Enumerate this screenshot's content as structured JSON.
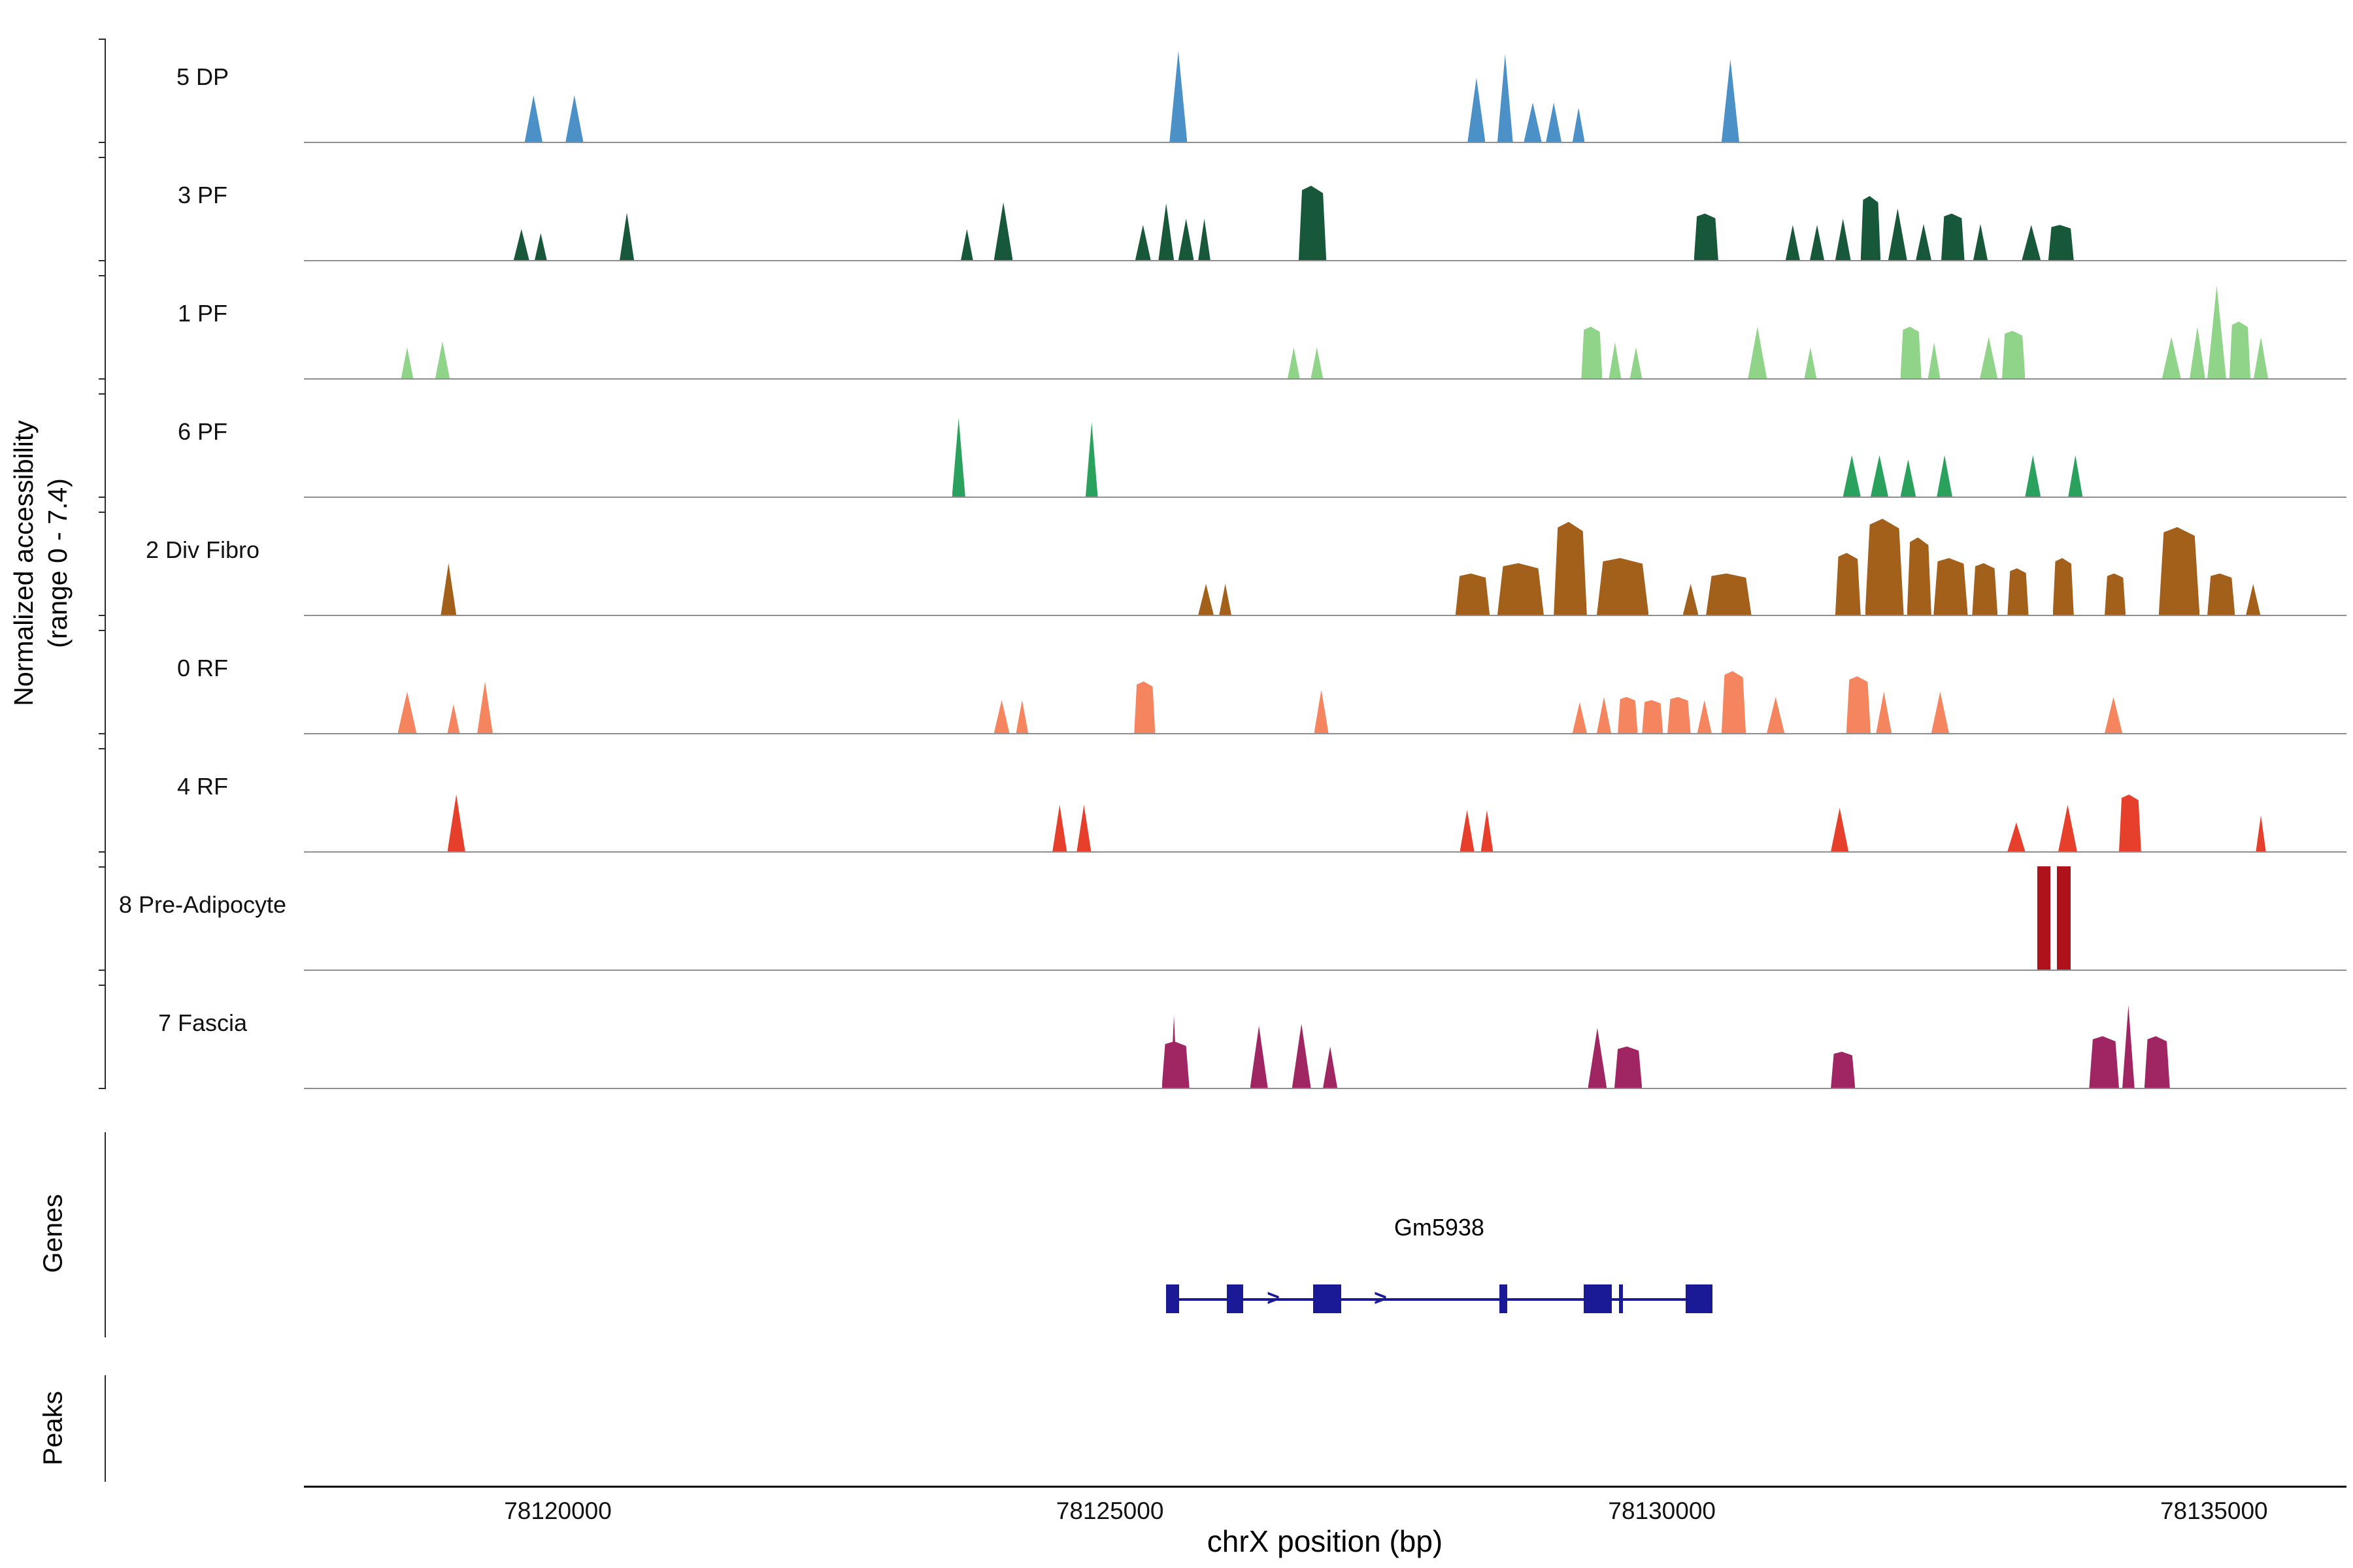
{
  "labels": {
    "y_axis_line1": "Normalized accessibility",
    "y_axis_line2": "(range 0 - 7.4)",
    "genes_section": "Genes",
    "peaks_section": "Peaks"
  },
  "chart_data": {
    "type": "area",
    "title": "",
    "xlabel": "chrX position (bp)",
    "ylabel": "Normalized accessibility (range 0 - 7.4)",
    "ylim": [
      0,
      7.4
    ],
    "x_domain": [
      78117700,
      78136200
    ],
    "x_ticks": [
      78120000,
      78125000,
      78130000,
      78135000
    ],
    "x_tick_labels": [
      "78120000",
      "78125000",
      "78130000",
      "78135000"
    ],
    "legend": "none",
    "grid": false,
    "tracks": [
      {
        "label": "5 DP",
        "color": "#4b90c6",
        "peaks": [
          [
            78119700,
            78119860,
            0.45
          ],
          [
            78120070,
            78120230,
            0.45
          ],
          [
            78125540,
            78125700,
            0.88
          ],
          [
            78128240,
            78128400,
            0.62
          ],
          [
            78128510,
            78128650,
            0.85
          ],
          [
            78128750,
            78128910,
            0.38
          ],
          [
            78128950,
            78129090,
            0.38
          ],
          [
            78129190,
            78129300,
            0.33
          ],
          [
            78130540,
            78130700,
            0.8
          ]
        ]
      },
      {
        "label": "3 PF",
        "color": "#17573a",
        "peaks": [
          [
            78119600,
            78119740,
            0.3
          ],
          [
            78119790,
            78119900,
            0.26
          ],
          [
            78120560,
            78120690,
            0.46
          ],
          [
            78123650,
            78123760,
            0.3
          ],
          [
            78123950,
            78124120,
            0.56
          ],
          [
            78125230,
            78125370,
            0.34
          ],
          [
            78125440,
            78125580,
            0.55
          ],
          [
            78125620,
            78125760,
            0.4
          ],
          [
            78125800,
            78125910,
            0.4
          ],
          [
            78126710,
            78126960,
            0.72
          ],
          [
            78130290,
            78130510,
            0.45
          ],
          [
            78131120,
            78131250,
            0.34
          ],
          [
            78131340,
            78131470,
            0.34
          ],
          [
            78131570,
            78131710,
            0.4
          ],
          [
            78131800,
            78131980,
            0.62
          ],
          [
            78132050,
            78132220,
            0.5
          ],
          [
            78132300,
            78132440,
            0.35
          ],
          [
            78132530,
            78132740,
            0.45
          ],
          [
            78132820,
            78132950,
            0.35
          ],
          [
            78133260,
            78133430,
            0.34
          ],
          [
            78133500,
            78133730,
            0.34
          ]
        ]
      },
      {
        "label": "1 PF",
        "color": "#8fd488",
        "peaks": [
          [
            78118580,
            78118690,
            0.3
          ],
          [
            78118890,
            78119020,
            0.36
          ],
          [
            78126610,
            78126720,
            0.3
          ],
          [
            78126820,
            78126930,
            0.3
          ],
          [
            78129270,
            78129460,
            0.5
          ],
          [
            78129520,
            78129630,
            0.35
          ],
          [
            78129710,
            78129820,
            0.3
          ],
          [
            78130780,
            78130950,
            0.5
          ],
          [
            78131290,
            78131400,
            0.3
          ],
          [
            78132160,
            78132350,
            0.5
          ],
          [
            78132410,
            78132520,
            0.35
          ],
          [
            78132880,
            78133040,
            0.4
          ],
          [
            78133080,
            78133290,
            0.46
          ],
          [
            78134530,
            78134700,
            0.4
          ],
          [
            78134780,
            78134920,
            0.5
          ],
          [
            78134940,
            78135110,
            0.9
          ],
          [
            78135140,
            78135330,
            0.55
          ],
          [
            78135360,
            78135490,
            0.4
          ]
        ]
      },
      {
        "label": "6 PF",
        "color": "#2aa25d",
        "peaks": [
          [
            78123570,
            78123690,
            0.76
          ],
          [
            78124780,
            78124890,
            0.72
          ],
          [
            78131640,
            78131800,
            0.4
          ],
          [
            78131890,
            78132050,
            0.4
          ],
          [
            78132160,
            78132300,
            0.36
          ],
          [
            78132490,
            78132630,
            0.4
          ],
          [
            78133290,
            78133430,
            0.4
          ],
          [
            78133680,
            78133810,
            0.4
          ]
        ]
      },
      {
        "label": "2 Div Fibro",
        "color": "#a2601b",
        "peaks": [
          [
            78118940,
            78119080,
            0.5
          ],
          [
            78125800,
            78125940,
            0.3
          ],
          [
            78125990,
            78126100,
            0.3
          ],
          [
            78128130,
            78128440,
            0.4
          ],
          [
            78128510,
            78128930,
            0.5
          ],
          [
            78129020,
            78129320,
            0.9
          ],
          [
            78129410,
            78129880,
            0.55
          ],
          [
            78130190,
            78130330,
            0.3
          ],
          [
            78130400,
            78130810,
            0.4
          ],
          [
            78131570,
            78131800,
            0.6
          ],
          [
            78131840,
            78132190,
            0.93
          ],
          [
            78132220,
            78132440,
            0.75
          ],
          [
            78132460,
            78132770,
            0.55
          ],
          [
            78132810,
            78133040,
            0.5
          ],
          [
            78133130,
            78133320,
            0.45
          ],
          [
            78133540,
            78133730,
            0.55
          ],
          [
            78134010,
            78134200,
            0.4
          ],
          [
            78134500,
            78134870,
            0.85
          ],
          [
            78134940,
            78135190,
            0.4
          ],
          [
            78135290,
            78135420,
            0.3
          ]
        ]
      },
      {
        "label": "0 RF",
        "color": "#f5855f",
        "peaks": [
          [
            78118550,
            78118720,
            0.4
          ],
          [
            78119000,
            78119110,
            0.28
          ],
          [
            78119270,
            78119410,
            0.5
          ],
          [
            78123950,
            78124090,
            0.32
          ],
          [
            78124150,
            78124260,
            0.32
          ],
          [
            78125220,
            78125410,
            0.5
          ],
          [
            78126850,
            78126980,
            0.42
          ],
          [
            78129190,
            78129320,
            0.3
          ],
          [
            78129410,
            78129540,
            0.35
          ],
          [
            78129600,
            78129780,
            0.35
          ],
          [
            78129820,
            78130010,
            0.32
          ],
          [
            78130050,
            78130260,
            0.35
          ],
          [
            78130320,
            78130450,
            0.32
          ],
          [
            78130540,
            78130760,
            0.6
          ],
          [
            78130950,
            78131110,
            0.35
          ],
          [
            78131670,
            78131890,
            0.55
          ],
          [
            78131940,
            78132080,
            0.4
          ],
          [
            78132440,
            78132600,
            0.4
          ],
          [
            78134010,
            78134170,
            0.35
          ]
        ]
      },
      {
        "label": "4 RF",
        "color": "#e6402d",
        "peaks": [
          [
            78119000,
            78119160,
            0.55
          ],
          [
            78124480,
            78124610,
            0.45
          ],
          [
            78124700,
            78124830,
            0.45
          ],
          [
            78128170,
            78128300,
            0.4
          ],
          [
            78128360,
            78128470,
            0.4
          ],
          [
            78131530,
            78131690,
            0.42
          ],
          [
            78133130,
            78133290,
            0.28
          ],
          [
            78133590,
            78133760,
            0.45
          ],
          [
            78134140,
            78134340,
            0.55
          ],
          [
            78135380,
            78135470,
            0.35
          ]
        ]
      },
      {
        "label": "8 Pre-Adipocyte",
        "color": "#b0121c",
        "peaks": [
          [
            78133400,
            78133520,
            1.0,
            "rect"
          ],
          [
            78133580,
            78133700,
            1.0,
            "rect"
          ]
        ]
      },
      {
        "label": "7 Fascia",
        "color": "#a02563",
        "peaks": [
          [
            78125470,
            78125720,
            0.45
          ],
          [
            78125550,
            78125610,
            0.7
          ],
          [
            78126270,
            78126430,
            0.6
          ],
          [
            78126650,
            78126820,
            0.62
          ],
          [
            78126930,
            78127060,
            0.4
          ],
          [
            78129330,
            78129500,
            0.58
          ],
          [
            78129570,
            78129820,
            0.4
          ],
          [
            78131530,
            78131750,
            0.35
          ],
          [
            78133870,
            78134140,
            0.5
          ],
          [
            78134170,
            78134280,
            0.8
          ],
          [
            78134370,
            78134600,
            0.5
          ]
        ]
      }
    ],
    "gene": {
      "name": "Gm5938",
      "color": "#1a1a96",
      "strand": "+",
      "arrow_glyph": ">",
      "start": 78125510,
      "end": 78130455,
      "exons": [
        [
          78125510,
          78125625
        ],
        [
          78126060,
          78126205
        ],
        [
          78126840,
          78127095
        ],
        [
          78128525,
          78128600
        ],
        [
          78129290,
          78129545
        ],
        [
          78129610,
          78129640
        ],
        [
          78130215,
          78130455
        ]
      ],
      "arrows": [
        78126480,
        78127450
      ]
    },
    "peaks_track": []
  }
}
